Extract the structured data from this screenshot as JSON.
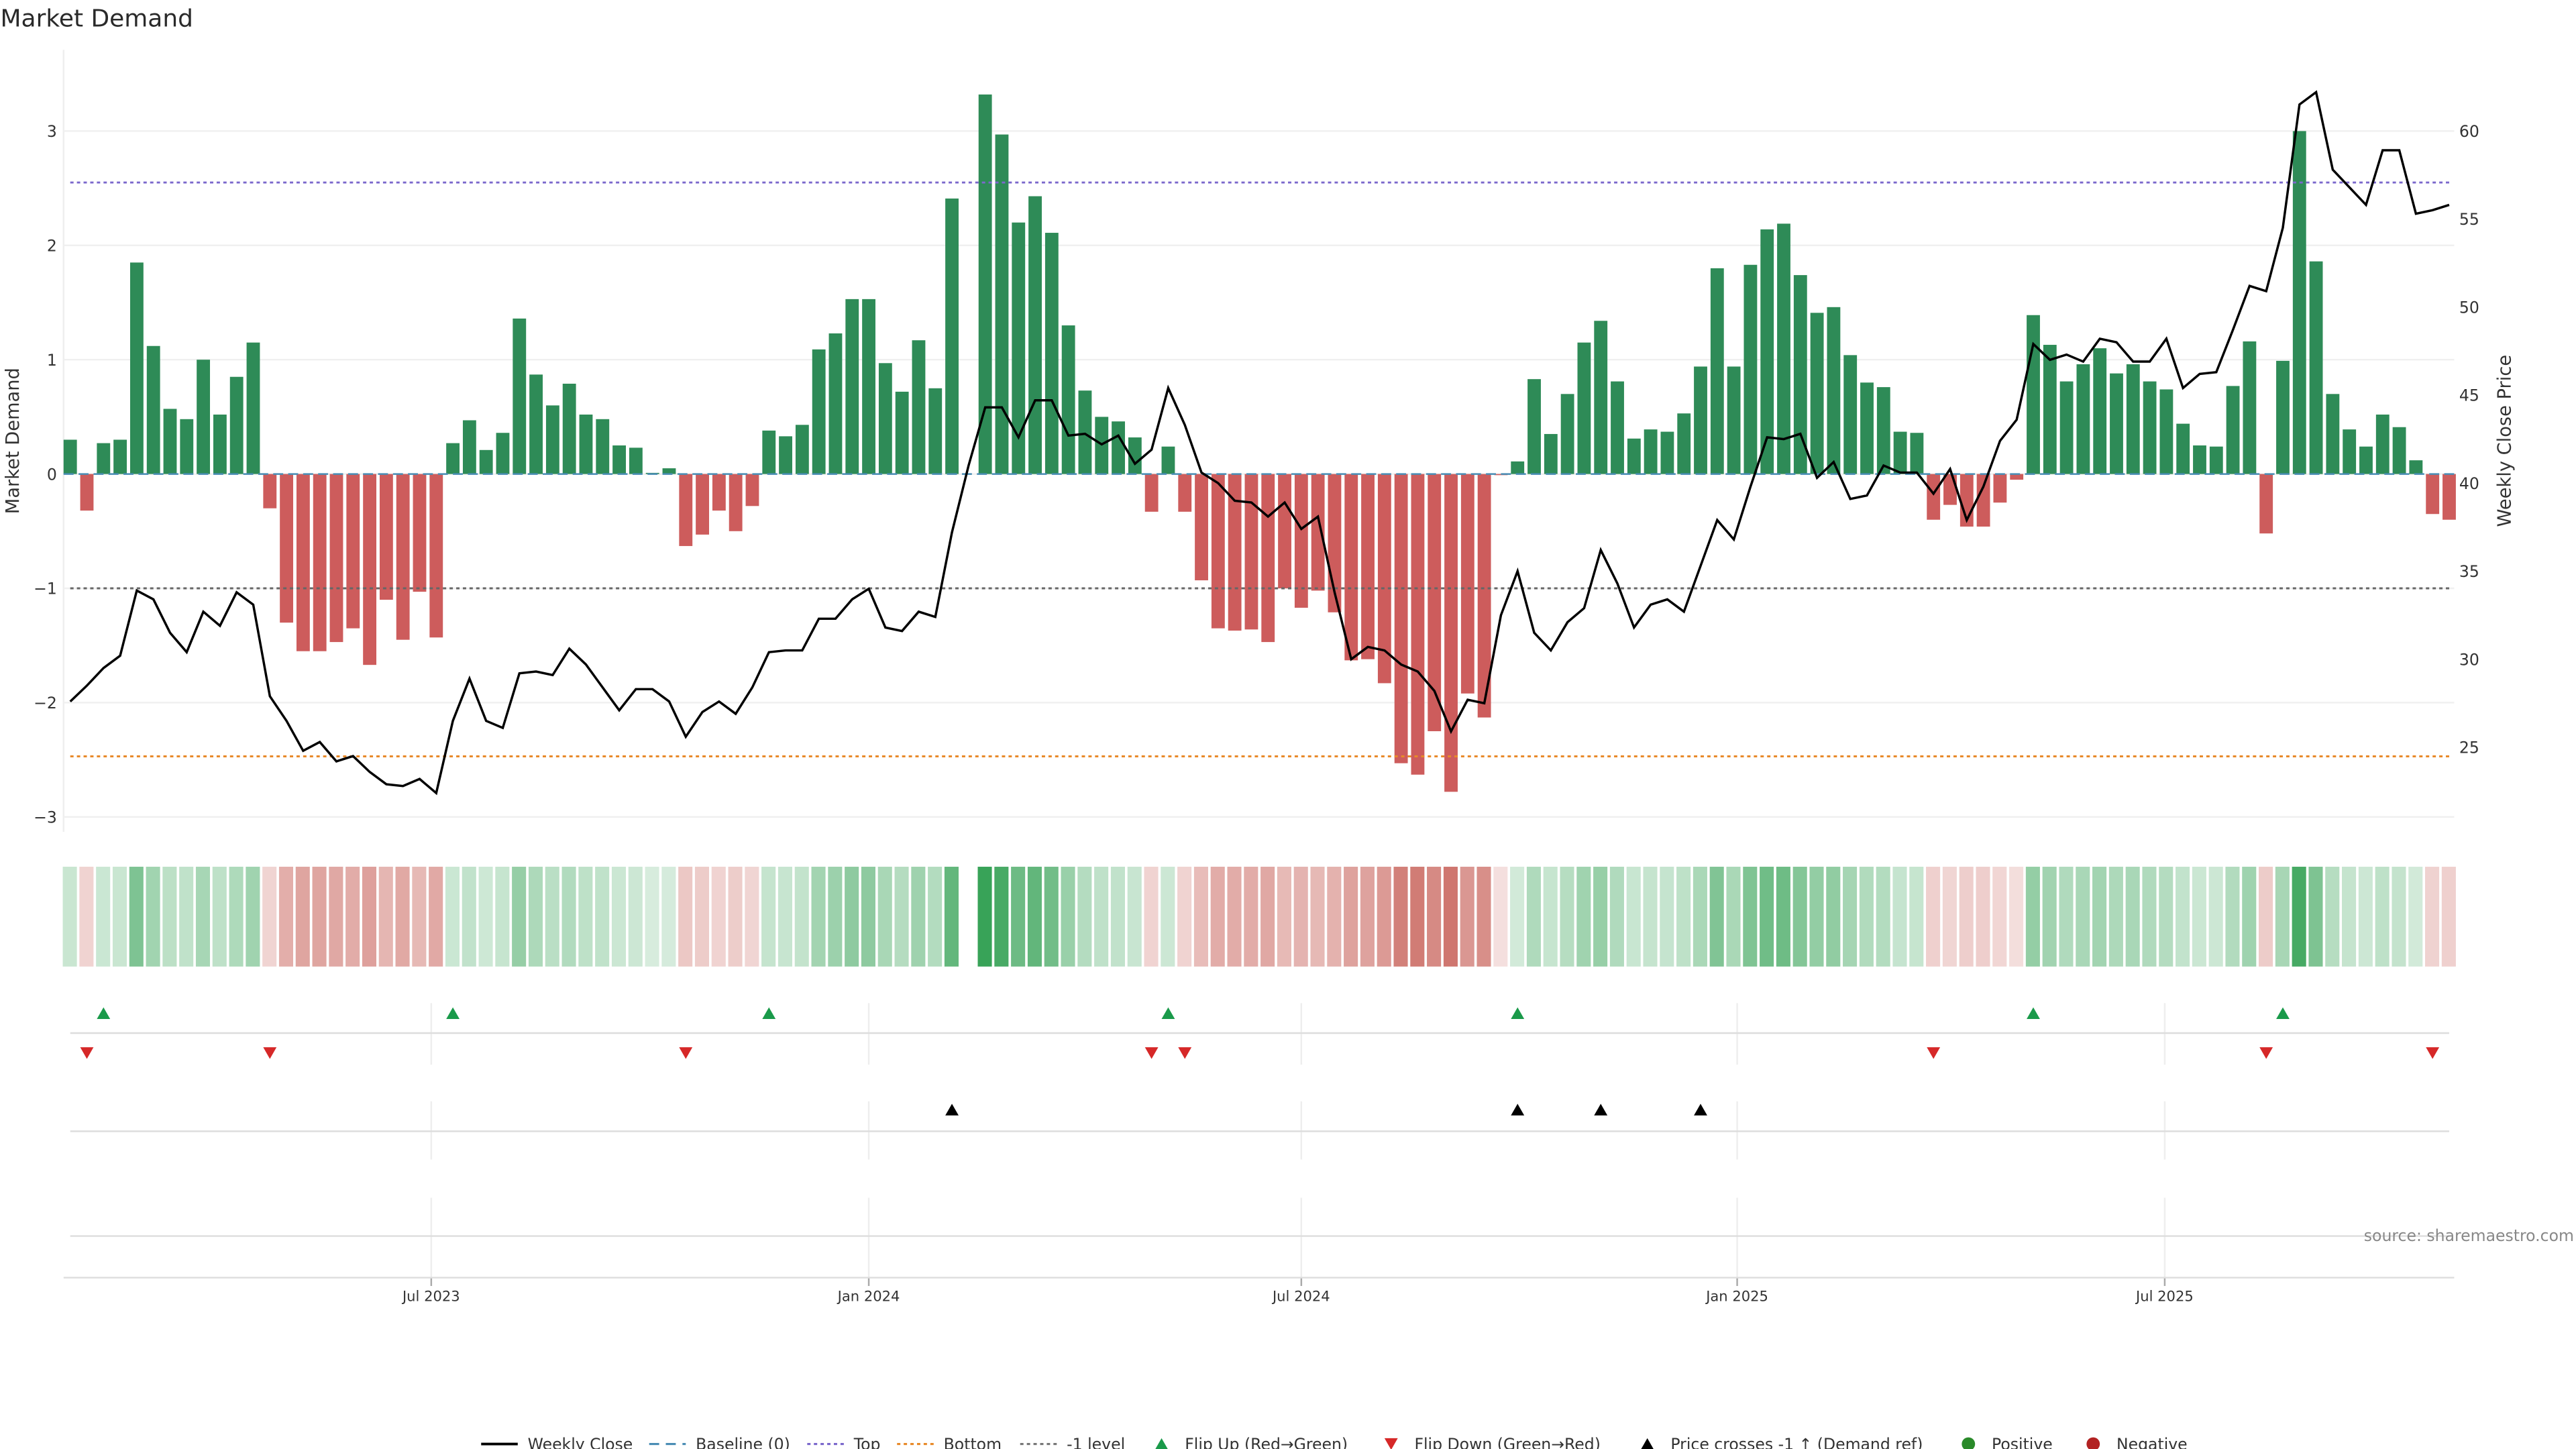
{
  "chart_data": {
    "type": "bar",
    "title": "Market Demand",
    "ylabel": "Market Demand",
    "y2label": "Weekly Close Price",
    "ylim": [
      -3.13,
      3.71
    ],
    "y2lim": [
      20.2,
      64.6
    ],
    "yticks": [
      -3,
      -2,
      -1,
      0,
      1,
      2,
      3
    ],
    "y2ticks": [
      25,
      30,
      35,
      40,
      45,
      50,
      55,
      60
    ],
    "x_unit": "week index",
    "x_ticks": [
      {
        "label": "Jul 2023",
        "week": 21.7
      },
      {
        "label": "Jan 2024",
        "week": 48
      },
      {
        "label": "Jul 2024",
        "week": 74
      },
      {
        "label": "Jan 2025",
        "week": 100.2
      },
      {
        "label": "Jul 2025",
        "week": 125.9
      }
    ],
    "levels": {
      "baseline": 0,
      "top": 2.55,
      "bottom": -2.47,
      "minus_one": -1
    },
    "demand": [
      0.3,
      -0.32,
      0.27,
      0.3,
      1.85,
      1.12,
      0.57,
      0.48,
      1.0,
      0.52,
      0.85,
      1.15,
      -0.3,
      -1.3,
      -1.55,
      -1.55,
      -1.47,
      -1.35,
      -1.67,
      -1.1,
      -1.45,
      -1.03,
      -1.43,
      0.27,
      0.47,
      0.21,
      0.36,
      1.36,
      0.87,
      0.6,
      0.79,
      0.52,
      0.48,
      0.25,
      0.23,
      0.01,
      0.05,
      -0.63,
      -0.53,
      -0.32,
      -0.5,
      -0.28,
      0.38,
      0.33,
      0.43,
      1.09,
      1.23,
      1.53,
      1.53,
      0.97,
      0.72,
      1.17,
      0.75,
      2.41,
      null,
      3.32,
      2.97,
      2.2,
      2.43,
      2.11,
      1.3,
      0.73,
      0.5,
      0.46,
      0.32,
      -0.33,
      0.24,
      -0.33,
      -0.93,
      -1.35,
      -1.37,
      -1.36,
      -1.47,
      -1.0,
      -1.17,
      -1.02,
      -1.21,
      -1.63,
      -1.62,
      -1.83,
      -2.53,
      -2.63,
      -2.25,
      -2.78,
      -1.92,
      -2.13,
      -0.01,
      0.11,
      0.83,
      0.35,
      0.7,
      1.15,
      1.34,
      0.81,
      0.31,
      0.39,
      0.37,
      0.53,
      0.94,
      1.8,
      0.94,
      1.83,
      2.14,
      2.19,
      1.74,
      1.41,
      1.46,
      1.04,
      0.8,
      0.76,
      0.37,
      0.36,
      -0.4,
      -0.27,
      -0.46,
      -0.46,
      -0.25,
      -0.05,
      1.39,
      1.13,
      0.81,
      0.96,
      1.1,
      0.88,
      0.96,
      0.81,
      0.74,
      0.44,
      0.25,
      0.24,
      0.77,
      1.16,
      -0.52,
      0.99,
      3.0,
      1.86,
      0.7,
      0.39,
      0.24,
      0.52,
      0.41,
      0.12,
      -0.35,
      -0.4
    ],
    "weekly_close": [
      27.6,
      28.5,
      29.5,
      30.2,
      33.9,
      33.4,
      31.5,
      30.4,
      32.7,
      31.9,
      33.8,
      33.1,
      27.9,
      26.5,
      24.8,
      25.3,
      24.2,
      24.5,
      23.6,
      22.9,
      22.8,
      23.2,
      22.4,
      26.5,
      28.9,
      26.5,
      26.1,
      29.2,
      29.3,
      29.1,
      30.6,
      29.7,
      28.4,
      27.1,
      28.3,
      28.3,
      27.6,
      25.6,
      27.0,
      27.6,
      26.9,
      28.4,
      30.4,
      30.5,
      30.5,
      32.3,
      32.3,
      33.4,
      34.0,
      31.8,
      31.6,
      32.7,
      32.4,
      37.2,
      41.0,
      44.3,
      44.3,
      42.6,
      44.7,
      44.7,
      42.7,
      42.8,
      42.2,
      42.7,
      41.1,
      41.9,
      45.4,
      43.3,
      40.6,
      40.0,
      39.0,
      38.9,
      38.1,
      38.9,
      37.4,
      38.1,
      33.8,
      30.0,
      30.7,
      30.5,
      29.7,
      29.3,
      28.2,
      25.9,
      27.7,
      27.5,
      32.5,
      35.0,
      31.5,
      30.5,
      32.1,
      32.9,
      36.2,
      34.3,
      31.8,
      33.1,
      33.4,
      32.7,
      35.3,
      37.9,
      36.8,
      39.8,
      42.6,
      42.5,
      42.8,
      40.3,
      41.2,
      39.1,
      39.3,
      41.0,
      40.6,
      40.6,
      39.4,
      40.8,
      37.9,
      39.8,
      42.4,
      43.6,
      47.9,
      47.0,
      47.3,
      46.9,
      48.2,
      48.0,
      46.9,
      46.9,
      48.2,
      45.4,
      46.2,
      46.3,
      48.7,
      51.2,
      50.9,
      54.5,
      61.5,
      62.2,
      57.8,
      56.8,
      55.8,
      58.9,
      58.9,
      55.3,
      55.5,
      55.8
    ],
    "flip_up_weeks": [
      2,
      23,
      42,
      66,
      87,
      118,
      133
    ],
    "flip_down_weeks": [
      1,
      12,
      37,
      65,
      67,
      112,
      132,
      142
    ],
    "price_cross_weeks": [
      53,
      87,
      92,
      98
    ],
    "legend_position": "bottom-center",
    "legend": [
      {
        "label": "Weekly Close",
        "kind": "line",
        "color": "#000000"
      },
      {
        "label": "Baseline (0)",
        "kind": "dash",
        "color": "#4a8db5"
      },
      {
        "label": "Top",
        "kind": "dot",
        "color": "#7b68cc"
      },
      {
        "label": "Bottom",
        "kind": "dot",
        "color": "#e88a2a"
      },
      {
        "label": "-1 level",
        "kind": "dot",
        "color": "#777777"
      },
      {
        "label": "Flip Up (Red→Green)",
        "kind": "tri-up",
        "color": "#1a9a4a"
      },
      {
        "label": "Flip Down (Green→Red)",
        "kind": "tri-down",
        "color": "#d62828"
      },
      {
        "label": "Price crosses -1 ↑ (Demand ref)",
        "kind": "tri-up",
        "color": "#000000"
      },
      {
        "label": "Positive",
        "kind": "circle",
        "color": "#2a8a2a"
      },
      {
        "label": "Negative",
        "kind": "circle",
        "color": "#b22222"
      }
    ],
    "colors": {
      "positive_bar": "#2e8b57",
      "negative_bar": "#cd5c5c",
      "heat_pos": "#2e9e4f",
      "heat_neg": "#c55a52"
    }
  },
  "source": "source: sharemaestro.com"
}
